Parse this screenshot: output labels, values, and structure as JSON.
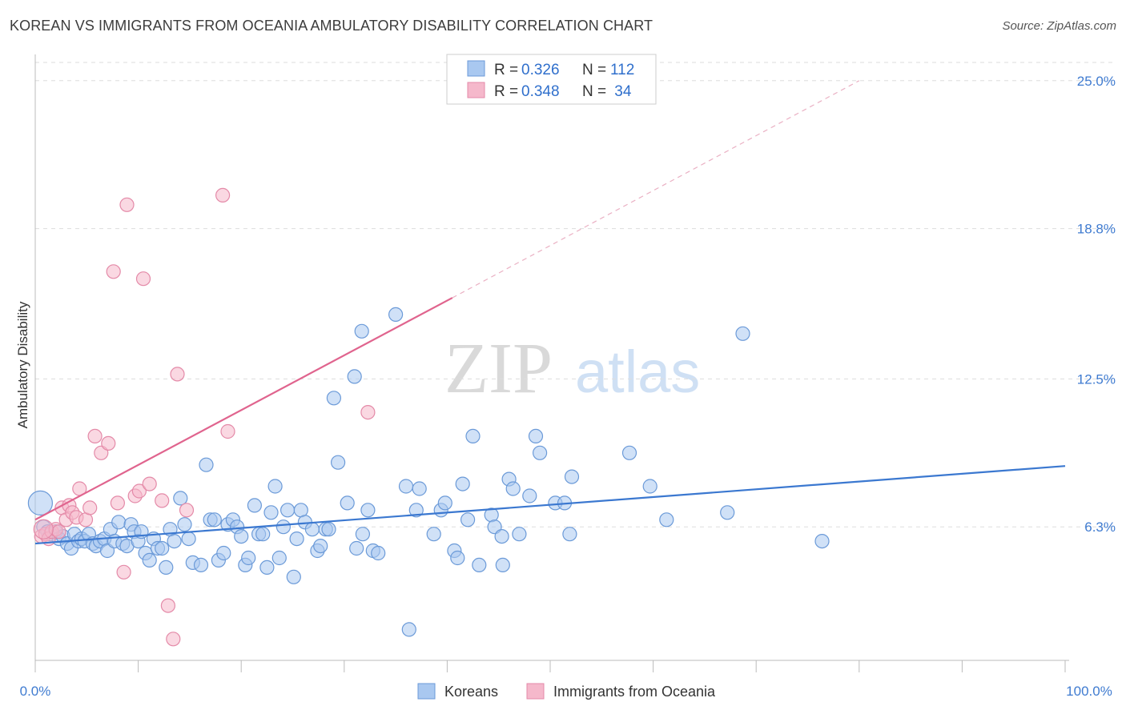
{
  "title": "KOREAN VS IMMIGRANTS FROM OCEANIA AMBULATORY DISABILITY CORRELATION CHART",
  "source": "Source: ZipAtlas.com",
  "watermark": {
    "zip": "ZIP",
    "atlas": "atlas"
  },
  "colors": {
    "blue": "#3b78d0",
    "blue_fill": "#a9c8f0",
    "pink": "#e0648e",
    "pink_fill": "#f5b8cb",
    "grid": "#dddddd"
  },
  "legend": {
    "rows": [
      {
        "r_label": "R = ",
        "r_value": "0.326",
        "n_label": "N = ",
        "n_value": "112"
      },
      {
        "r_label": "R = ",
        "r_value": "0.348",
        "n_label": "N = ",
        "n_value": " 34"
      }
    ]
  },
  "bottom_legend": [
    "Koreans",
    "Immigrants from Oceania"
  ],
  "chart_data": {
    "type": "scatter",
    "ylabel": "Ambulatory Disability",
    "xlabel": "",
    "x_ticks": [
      "0.0%",
      "100.0%"
    ],
    "y_ticks": [
      {
        "value": 6.3,
        "label": "6.3%"
      },
      {
        "value": 12.5,
        "label": "12.5%"
      },
      {
        "value": 18.8,
        "label": "18.8%"
      },
      {
        "value": 25.0,
        "label": "25.0%"
      }
    ],
    "xlim": [
      0,
      100
    ],
    "ylim": [
      0,
      26
    ],
    "series": [
      {
        "name": "Koreans",
        "color": "#3b78d0",
        "trend": {
          "x0": 0,
          "y0": 5.6,
          "x1": 100,
          "y1": 8.85
        },
        "points": [
          [
            0.5,
            7.3
          ],
          [
            0.8,
            6.3
          ],
          [
            1.2,
            6.1
          ],
          [
            1.5,
            6.0
          ],
          [
            2.0,
            6.1
          ],
          [
            2.3,
            5.8
          ],
          [
            2.7,
            5.9
          ],
          [
            3.1,
            5.6
          ],
          [
            3.5,
            5.4
          ],
          [
            3.8,
            6.0
          ],
          [
            4.2,
            5.7
          ],
          [
            4.5,
            5.8
          ],
          [
            4.8,
            5.7
          ],
          [
            5.2,
            6.0
          ],
          [
            5.6,
            5.6
          ],
          [
            5.9,
            5.5
          ],
          [
            6.3,
            5.7
          ],
          [
            6.7,
            5.8
          ],
          [
            7.0,
            5.3
          ],
          [
            7.3,
            6.2
          ],
          [
            7.7,
            5.7
          ],
          [
            8.1,
            6.5
          ],
          [
            8.5,
            5.6
          ],
          [
            8.9,
            5.5
          ],
          [
            9.3,
            6.4
          ],
          [
            9.6,
            6.1
          ],
          [
            10.0,
            5.7
          ],
          [
            10.3,
            6.1
          ],
          [
            10.7,
            5.2
          ],
          [
            11.1,
            4.9
          ],
          [
            11.5,
            5.8
          ],
          [
            11.9,
            5.4
          ],
          [
            12.3,
            5.4
          ],
          [
            12.7,
            4.6
          ],
          [
            13.1,
            6.2
          ],
          [
            13.5,
            5.7
          ],
          [
            14.1,
            7.5
          ],
          [
            14.5,
            6.4
          ],
          [
            14.9,
            5.8
          ],
          [
            15.3,
            4.8
          ],
          [
            16.1,
            4.7
          ],
          [
            16.6,
            8.9
          ],
          [
            17.0,
            6.6
          ],
          [
            17.4,
            6.6
          ],
          [
            17.8,
            4.9
          ],
          [
            18.3,
            5.2
          ],
          [
            18.7,
            6.4
          ],
          [
            19.2,
            6.6
          ],
          [
            19.6,
            6.3
          ],
          [
            20.0,
            5.9
          ],
          [
            20.4,
            4.7
          ],
          [
            20.7,
            5.0
          ],
          [
            21.3,
            7.2
          ],
          [
            21.7,
            6.0
          ],
          [
            22.1,
            6.0
          ],
          [
            22.5,
            4.6
          ],
          [
            22.9,
            6.9
          ],
          [
            23.3,
            8.0
          ],
          [
            23.7,
            5.0
          ],
          [
            24.1,
            6.3
          ],
          [
            24.5,
            7.0
          ],
          [
            25.1,
            4.2
          ],
          [
            25.4,
            5.8
          ],
          [
            25.8,
            7.0
          ],
          [
            26.2,
            6.5
          ],
          [
            26.9,
            6.2
          ],
          [
            27.4,
            5.3
          ],
          [
            27.7,
            5.5
          ],
          [
            28.2,
            6.2
          ],
          [
            28.5,
            6.2
          ],
          [
            29.0,
            11.7
          ],
          [
            29.4,
            9.0
          ],
          [
            30.3,
            7.3
          ],
          [
            31.0,
            12.6
          ],
          [
            31.2,
            5.4
          ],
          [
            31.8,
            6.0
          ],
          [
            32.3,
            7.0
          ],
          [
            32.8,
            5.3
          ],
          [
            33.3,
            5.2
          ],
          [
            31.7,
            14.5
          ],
          [
            35.0,
            15.2
          ],
          [
            36.0,
            8.0
          ],
          [
            36.3,
            2.0
          ],
          [
            37.0,
            7.0
          ],
          [
            37.3,
            7.9
          ],
          [
            38.7,
            6.0
          ],
          [
            39.4,
            7.0
          ],
          [
            39.8,
            7.3
          ],
          [
            40.7,
            5.3
          ],
          [
            41.0,
            5.0
          ],
          [
            41.5,
            8.1
          ],
          [
            42.0,
            6.6
          ],
          [
            42.5,
            10.1
          ],
          [
            43.1,
            4.7
          ],
          [
            44.3,
            6.8
          ],
          [
            44.6,
            6.3
          ],
          [
            45.3,
            5.9
          ],
          [
            45.4,
            4.7
          ],
          [
            46.0,
            8.3
          ],
          [
            46.4,
            7.9
          ],
          [
            47.0,
            6.0
          ],
          [
            48.0,
            7.6
          ],
          [
            48.6,
            10.1
          ],
          [
            49.0,
            9.4
          ],
          [
            50.5,
            7.3
          ],
          [
            51.4,
            7.3
          ],
          [
            51.9,
            6.0
          ],
          [
            52.1,
            8.4
          ],
          [
            57.7,
            9.4
          ],
          [
            59.7,
            8.0
          ],
          [
            61.3,
            6.6
          ],
          [
            67.2,
            6.9
          ],
          [
            68.7,
            14.4
          ],
          [
            76.4,
            5.7
          ]
        ]
      },
      {
        "name": "Immigrants from Oceania",
        "color": "#e0648e",
        "trend": {
          "x0": 0,
          "y0": 6.6,
          "x1": 40.5,
          "y1": 15.9,
          "dash_to_x": 80,
          "dash_to_y": 25.0
        },
        "points": [
          [
            0.6,
            5.9
          ],
          [
            1.0,
            6.0
          ],
          [
            1.3,
            5.8
          ],
          [
            1.6,
            6.1
          ],
          [
            2.0,
            6.2
          ],
          [
            2.3,
            6.1
          ],
          [
            2.6,
            7.1
          ],
          [
            3.0,
            6.6
          ],
          [
            3.3,
            7.2
          ],
          [
            3.6,
            6.9
          ],
          [
            4.0,
            6.7
          ],
          [
            4.3,
            7.9
          ],
          [
            4.9,
            6.6
          ],
          [
            5.3,
            7.1
          ],
          [
            5.8,
            10.1
          ],
          [
            6.4,
            9.4
          ],
          [
            7.1,
            9.8
          ],
          [
            7.6,
            17.0
          ],
          [
            8.0,
            7.3
          ],
          [
            8.6,
            4.4
          ],
          [
            8.9,
            19.8
          ],
          [
            9.7,
            7.6
          ],
          [
            10.1,
            7.8
          ],
          [
            10.5,
            16.7
          ],
          [
            11.1,
            8.1
          ],
          [
            12.3,
            7.4
          ],
          [
            12.9,
            3.0
          ],
          [
            13.4,
            1.6
          ],
          [
            13.8,
            12.7
          ],
          [
            14.7,
            7.0
          ],
          [
            18.2,
            20.2
          ],
          [
            18.7,
            10.3
          ],
          [
            32.3,
            11.1
          ],
          [
            0.8,
            6.2
          ]
        ]
      }
    ]
  }
}
